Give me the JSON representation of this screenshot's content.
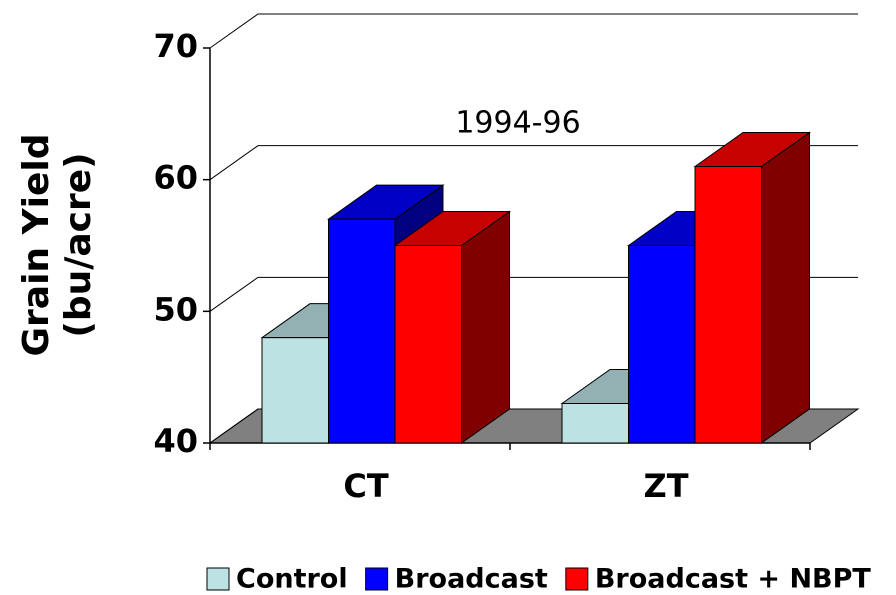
{
  "chart_data": {
    "type": "bar3d",
    "title": "1994-96",
    "ylabel": [
      "Grain Yield",
      "(bu/acre)"
    ],
    "categories": [
      "CT",
      "ZT"
    ],
    "series": [
      {
        "name": "Control",
        "color": "#bde2e4",
        "values": [
          48,
          43
        ]
      },
      {
        "name": "Broadcast",
        "color": "#0000ff",
        "values": [
          57,
          55
        ]
      },
      {
        "name": "Broadcast + NBPT",
        "color": "#ff0000",
        "values": [
          55,
          61
        ]
      }
    ],
    "ylim": [
      40,
      70
    ],
    "yticks": [
      40,
      50,
      60,
      70
    ],
    "grid": true,
    "legend": "bottom"
  }
}
